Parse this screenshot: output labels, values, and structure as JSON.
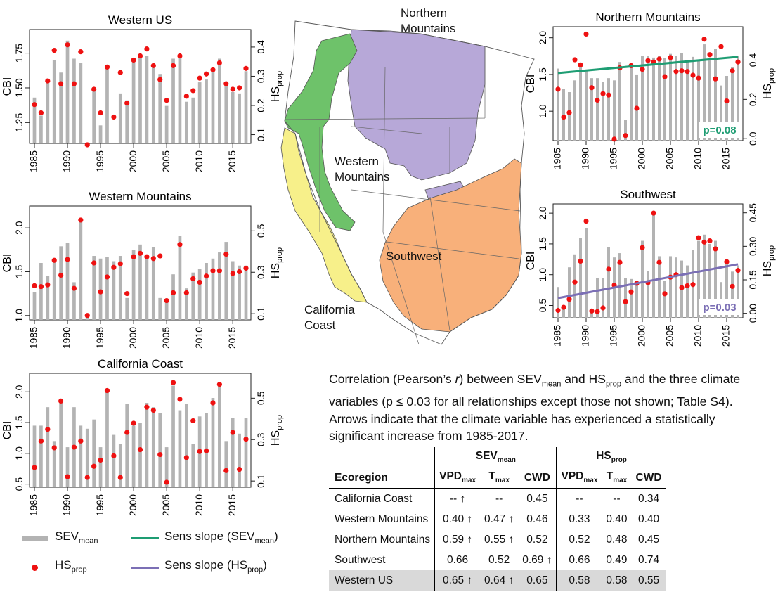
{
  "colors": {
    "bar": "#b3b3b3",
    "point": "#ee1111",
    "sens_sev": "#1e9d73",
    "sens_hs": "#7b6fb5",
    "nm": "#b7a8d8",
    "wm": "#6ec26a",
    "cc": "#f7f08a",
    "sw": "#f8b07a"
  },
  "panels": [
    {
      "id": "western_us",
      "title": "Western US",
      "ylabel_left": "CBI",
      "ylabel_right_base": "HS",
      "ylabel_right_sub": "prop",
      "left_ticks": [
        "1.25",
        "1.50",
        "1.75"
      ],
      "right_ticks": [
        "0.1",
        "0.2",
        "0.3",
        "0.4"
      ],
      "x_ticks": [
        "1985",
        "1990",
        "1995",
        "2000",
        "2005",
        "2010",
        "2015"
      ],
      "pvalue": null
    },
    {
      "id": "western_mountains",
      "title": "Western Mountains",
      "ylabel_left": "CBI",
      "ylabel_right_base": "HS",
      "ylabel_right_sub": "prop",
      "left_ticks": [
        "1.0",
        "1.5",
        "2.0"
      ],
      "right_ticks": [
        "0.1",
        "0.3",
        "0.5"
      ],
      "x_ticks": [
        "1985",
        "1990",
        "1995",
        "2000",
        "2005",
        "2010",
        "2015"
      ],
      "pvalue": null
    },
    {
      "id": "california_coast",
      "title": "California Coast",
      "ylabel_left": "CBI",
      "ylabel_right_base": "HS",
      "ylabel_right_sub": "prop",
      "left_ticks": [
        "0.5",
        "1.0",
        "1.5",
        "2.0"
      ],
      "right_ticks": [
        "0.1",
        "0.3",
        "0.5"
      ],
      "x_ticks": [
        "1985",
        "1990",
        "1995",
        "2000",
        "2005",
        "2010",
        "2015"
      ],
      "pvalue": null
    },
    {
      "id": "northern_mountains",
      "title": "Northern Mountains",
      "ylabel_left": "CBI",
      "ylabel_right_base": "HS",
      "ylabel_right_sub": "prop",
      "left_ticks": [
        "1.0",
        "1.5",
        "2.0"
      ],
      "right_ticks": [
        "0.0",
        "0.2",
        "0.4"
      ],
      "x_ticks": [
        "1985",
        "1990",
        "1995",
        "2000",
        "2005",
        "2010",
        "2015"
      ],
      "pvalue": "p=0.08"
    },
    {
      "id": "southwest",
      "title": "Southwest",
      "ylabel_left": "CBI",
      "ylabel_right_base": "HS",
      "ylabel_right_sub": "prop",
      "left_ticks": [
        "0.5",
        "1.0",
        "1.5",
        "2.0"
      ],
      "right_ticks": [
        "0.00",
        "0.15",
        "0.30",
        "0.45"
      ],
      "x_ticks": [
        "1985",
        "1990",
        "1995",
        "2000",
        "2005",
        "2010",
        "2015"
      ],
      "pvalue": "p=0.03"
    }
  ],
  "map": {
    "labels": {
      "northern_mountains": [
        "Northern",
        "Mountains"
      ],
      "western_mountains": [
        "Western",
        "Mountains"
      ],
      "southwest": "Southwest",
      "california_coast": [
        "California",
        "Coast"
      ]
    }
  },
  "legend": {
    "bar_base": "SEV",
    "bar_sub": "mean",
    "point_base": "HS",
    "point_sub": "prop",
    "sens_sev_text": "Sens slope (SEV",
    "sens_sev_sub": "mean",
    "sens_sev_close": ")",
    "sens_hs_text": "Sens slope (HS",
    "sens_hs_sub": "prop",
    "sens_hs_close": ")"
  },
  "caption": {
    "p1": "Correlation (Pearson’s ",
    "r": "r",
    "p2": ") between SEV",
    "sub1": "mean",
    "p3": " and HS",
    "sub2": "prop",
    "p4": " and the three climate variables (p ≤ 0.03 for all relationships except those not shown; Table S4). Arrows indicate that the climate variable has experienced a statistically significant increase from 1985-2017."
  },
  "table": {
    "group_sev_base": "SEV",
    "group_sev_sub": "mean",
    "group_hs_base": "HS",
    "group_hs_sub": "prop",
    "col_ecoregion": "Ecoregion",
    "vpd_base": "VPD",
    "vpd_sub": "max",
    "tmax_base": "T",
    "tmax_sub": "max",
    "cwd": "CWD",
    "rows": [
      {
        "name": "California Coast",
        "v": [
          "-- ↑",
          "--",
          "0.45",
          "--",
          "--",
          "0.34"
        ]
      },
      {
        "name": "Western Mountains",
        "v": [
          "0.40 ↑",
          "0.47 ↑",
          "0.46",
          "0.33",
          "0.40",
          "0.40"
        ]
      },
      {
        "name": "Northern Mountains",
        "v": [
          "0.59 ↑",
          "0.55 ↑",
          "0.52",
          "0.52",
          "0.48",
          "0.45"
        ]
      },
      {
        "name": "Southwest",
        "v": [
          "0.66",
          "0.52",
          "0.69 ↑",
          "0.66",
          "0.49",
          "0.74"
        ]
      },
      {
        "name": "Western US",
        "v": [
          "0.65 ↑",
          "0.64 ↑",
          "0.65",
          "0.58",
          "0.58",
          "0.55"
        ]
      }
    ]
  },
  "chart_data": [
    {
      "type": "bar",
      "title": "Western US",
      "xlabel": "",
      "ylabel": "CBI",
      "y2label": "HSprop",
      "x": [
        1985,
        1986,
        1987,
        1988,
        1989,
        1990,
        1991,
        1992,
        1993,
        1994,
        1995,
        1996,
        1997,
        1998,
        1999,
        2000,
        2001,
        2002,
        2003,
        2004,
        2005,
        2006,
        2007,
        2008,
        2009,
        2010,
        2011,
        2012,
        2013,
        2014,
        2015,
        2016,
        2017
      ],
      "ylim": [
        1.1,
        1.92
      ],
      "y2lim": [
        0.07,
        0.46
      ],
      "series": [
        {
          "name": "SEVmean",
          "axis": "left",
          "values": [
            1.43,
            1.3,
            1.55,
            1.7,
            1.61,
            1.84,
            1.71,
            1.68,
            1.08,
            1.49,
            1.23,
            1.65,
            1.1,
            1.46,
            1.41,
            1.7,
            1.74,
            1.73,
            1.65,
            1.6,
            1.37,
            1.71,
            1.74,
            1.4,
            1.43,
            1.54,
            1.56,
            1.62,
            1.71,
            1.53,
            1.47,
            1.46,
            1.62
          ]
        },
        {
          "name": "HSprop",
          "axis": "left",
          "values": [
            1.38,
            1.32,
            1.55,
            1.77,
            1.53,
            1.81,
            1.53,
            1.76,
            1.09,
            1.49,
            1.32,
            1.65,
            1.29,
            1.61,
            1.39,
            1.7,
            1.73,
            1.78,
            1.66,
            1.56,
            1.41,
            1.66,
            1.73,
            1.44,
            1.48,
            1.57,
            1.6,
            1.63,
            1.68,
            1.53,
            1.49,
            1.5,
            1.64
          ]
        }
      ]
    },
    {
      "type": "bar",
      "title": "Western Mountains",
      "xlabel": "",
      "ylabel": "CBI",
      "y2label": "HSprop",
      "x": [
        1985,
        1986,
        1987,
        1988,
        1989,
        1990,
        1991,
        1992,
        1993,
        1994,
        1995,
        1996,
        1997,
        1998,
        1999,
        2000,
        2001,
        2002,
        2003,
        2004,
        2005,
        2006,
        2007,
        2008,
        2009,
        2010,
        2011,
        2012,
        2013,
        2014,
        2015,
        2016,
        2017
      ],
      "ylim": [
        0.95,
        2.25
      ],
      "y2lim": [
        0.07,
        0.62
      ],
      "series": [
        {
          "name": "SEVmean",
          "axis": "left",
          "values": [
            1.27,
            1.6,
            1.45,
            1.65,
            1.79,
            1.83,
            1.38,
            2.1,
            1.0,
            1.68,
            1.65,
            1.67,
            1.62,
            1.68,
            1.2,
            1.75,
            1.81,
            1.65,
            1.78,
            1.2,
            1.15,
            1.47,
            1.91,
            1.31,
            1.49,
            1.53,
            1.6,
            1.65,
            1.72,
            1.84,
            1.62,
            1.57,
            1.57
          ]
        },
        {
          "name": "HSprop",
          "axis": "left",
          "values": [
            1.34,
            1.33,
            1.35,
            1.63,
            1.46,
            1.64,
            1.31,
            2.09,
            1.0,
            1.6,
            1.27,
            1.44,
            1.55,
            1.59,
            1.25,
            1.67,
            1.71,
            1.67,
            1.65,
            1.68,
            1.17,
            1.26,
            1.81,
            1.26,
            1.42,
            1.38,
            1.45,
            1.51,
            1.51,
            1.7,
            1.48,
            1.5,
            1.54
          ]
        }
      ]
    },
    {
      "type": "bar",
      "title": "California Coast",
      "xlabel": "",
      "ylabel": "CBI",
      "y2label": "HSprop",
      "x": [
        1985,
        1986,
        1987,
        1988,
        1989,
        1990,
        1991,
        1992,
        1993,
        1994,
        1995,
        1996,
        1997,
        1998,
        1999,
        2000,
        2001,
        2002,
        2003,
        2004,
        2005,
        2006,
        2007,
        2008,
        2009,
        2010,
        2011,
        2012,
        2013,
        2014,
        2015,
        2016,
        2017
      ],
      "ylim": [
        0.45,
        2.3
      ],
      "y2lim": [
        0.07,
        0.62
      ],
      "series": [
        {
          "name": "SEVmean",
          "axis": "left",
          "values": [
            1.45,
            1.45,
            1.75,
            1.2,
            1.85,
            1.1,
            1.75,
            1.45,
            1.4,
            1.55,
            1.1,
            2.02,
            1.3,
            1.15,
            1.8,
            1.45,
            1.5,
            1.82,
            1.75,
            1.65,
            1.1,
            2.1,
            1.7,
            1.8,
            1.15,
            1.6,
            1.65,
            1.9,
            2.12,
            1.2,
            1.57,
            1.32,
            1.57
          ]
        },
        {
          "name": "HSprop",
          "axis": "left",
          "values": [
            0.77,
            1.2,
            1.39,
            1.09,
            1.85,
            0.62,
            1.1,
            1.2,
            0.61,
            0.79,
            0.89,
            2.02,
            0.96,
            0.61,
            1.34,
            1.49,
            1.06,
            1.75,
            1.7,
            0.98,
            0.53,
            2.15,
            1.88,
            0.93,
            1.53,
            1.03,
            1.04,
            1.82,
            2.12,
            0.72,
            1.34,
            0.74,
            1.23
          ]
        }
      ]
    },
    {
      "type": "bar",
      "title": "Northern Mountains",
      "xlabel": "",
      "ylabel": "CBI",
      "y2label": "HSprop",
      "pvalue": "p=0.08",
      "x": [
        1985,
        1986,
        1987,
        1988,
        1989,
        1990,
        1991,
        1992,
        1993,
        1994,
        1995,
        1996,
        1997,
        1998,
        1999,
        2000,
        2001,
        2002,
        2003,
        2004,
        2005,
        2006,
        2007,
        2008,
        2009,
        2010,
        2011,
        2012,
        2013,
        2014,
        2015,
        2016,
        2017
      ],
      "ylim": [
        0.6,
        2.15
      ],
      "y2lim": [
        -0.01,
        0.57
      ],
      "series": [
        {
          "name": "SEVmean",
          "axis": "left",
          "values": [
            1.58,
            1.3,
            1.26,
            1.42,
            1.65,
            1.55,
            1.45,
            1.45,
            1.4,
            1.45,
            1.42,
            1.67,
            0.88,
            1.6,
            1.5,
            1.75,
            1.75,
            1.73,
            1.75,
            1.72,
            1.78,
            1.75,
            1.79,
            1.7,
            1.74,
            1.7,
            1.91,
            1.7,
            1.85,
            1.35,
            1.48,
            1.6,
            1.75
          ]
        },
        {
          "name": "HSprop",
          "axis": "left",
          "values": [
            1.3,
            0.92,
            0.98,
            1.7,
            1.63,
            2.05,
            1.32,
            1.15,
            1.24,
            1.22,
            0.62,
            1.59,
            0.67,
            1.62,
            1.04,
            1.57,
            1.69,
            1.67,
            1.71,
            1.47,
            1.73,
            1.54,
            1.55,
            1.54,
            1.49,
            1.45,
            1.98,
            1.77,
            1.44,
            1.88,
            1.14,
            1.55,
            1.67
          ]
        },
        {
          "name": "Sens slope (SEVmean)",
          "axis": "left",
          "line": [
            [
              1985,
              1.52
            ],
            [
              2017,
              1.74
            ]
          ]
        }
      ]
    },
    {
      "type": "bar",
      "title": "Southwest",
      "xlabel": "",
      "ylabel": "CBI",
      "y2label": "HSprop",
      "pvalue": "p=0.03",
      "x": [
        1985,
        1986,
        1987,
        1988,
        1989,
        1990,
        1991,
        1992,
        1993,
        1994,
        1995,
        1996,
        1997,
        1998,
        1999,
        2000,
        2001,
        2002,
        2003,
        2004,
        2005,
        2006,
        2007,
        2008,
        2009,
        2010,
        2011,
        2012,
        2013,
        2014,
        2015,
        2016,
        2017
      ],
      "ylim": [
        0.3,
        2.15
      ],
      "y2lim": [
        -0.02,
        0.49
      ],
      "series": [
        {
          "name": "SEVmean",
          "axis": "left",
          "values": [
            0.8,
            0.48,
            1.12,
            1.33,
            1.6,
            1.75,
            0.42,
            0.95,
            0.95,
            1.45,
            1.28,
            1.35,
            0.95,
            0.93,
            0.85,
            1.55,
            1.06,
            2.0,
            1.3,
            0.9,
            1.3,
            1.28,
            1.23,
            1.15,
            1.4,
            1.55,
            1.65,
            1.5,
            1.55,
            0.88,
            1.25,
            1.05,
            1.15
          ]
        },
        {
          "name": "HSprop",
          "axis": "left",
          "values": [
            0.42,
            0.47,
            0.6,
            0.88,
            1.22,
            1.87,
            0.41,
            0.4,
            0.46,
            1.09,
            0.83,
            1.2,
            0.56,
            0.72,
            0.86,
            1.44,
            0.87,
            2.0,
            1.2,
            0.69,
            0.96,
            1.0,
            0.79,
            0.82,
            0.84,
            1.6,
            1.53,
            1.55,
            1.42,
            0.49,
            1.21,
            0.81,
            1.07
          ]
        },
        {
          "name": "Sens slope (HSprop)",
          "axis": "left",
          "line": [
            [
              1985,
              0.62
            ],
            [
              2017,
              1.17
            ]
          ]
        }
      ]
    }
  ]
}
